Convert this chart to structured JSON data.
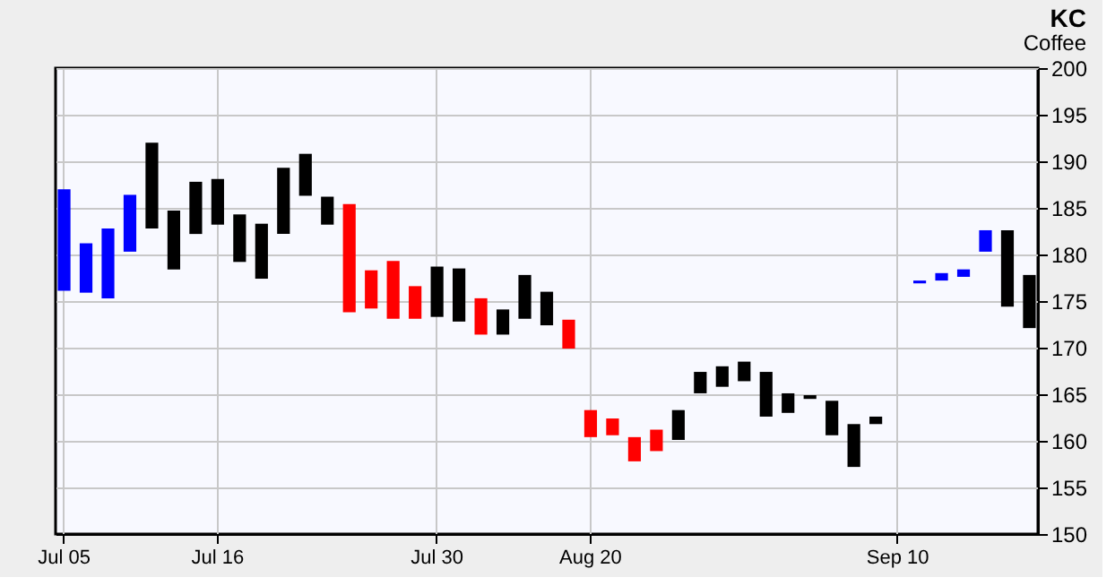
{
  "chart_data": {
    "type": "bar",
    "title": "KC",
    "subtitle": "Coffee",
    "categories": [
      "Jul 05",
      null,
      null,
      null,
      null,
      null,
      null,
      "Jul 16",
      null,
      null,
      null,
      null,
      null,
      null,
      null,
      null,
      null,
      "Jul 30",
      null,
      null,
      null,
      null,
      null,
      null,
      "Aug 20",
      null,
      null,
      null,
      null,
      null,
      null,
      null,
      null,
      null,
      null,
      null,
      null,
      null,
      "Sep 10",
      null,
      null,
      null,
      null,
      null,
      null
    ],
    "base": [
      176.1,
      175.9,
      175.3,
      180.3,
      182.8,
      178.4,
      182.2,
      183.2,
      179.2,
      177.4,
      182.2,
      186.3,
      183.2,
      173.8,
      174.2,
      173.1,
      173.1,
      173.3,
      172.8,
      171.4,
      171.4,
      173.1,
      172.4,
      169.9,
      160.4,
      160.6,
      157.8,
      158.9,
      160.1,
      165.1,
      165.8,
      166.4,
      162.6,
      163.0,
      164.5,
      160.6,
      157.2,
      161.8,
      null,
      176.9,
      177.2,
      177.6,
      180.3,
      174.4,
      172.1
    ],
    "values": [
      10.9,
      5.3,
      7.5,
      6.1,
      9.2,
      6.3,
      5.6,
      4.9,
      5.1,
      5.9,
      7.1,
      4.5,
      3.0,
      11.6,
      4.1,
      6.2,
      3.5,
      5.4,
      5.7,
      3.9,
      2.7,
      4.7,
      3.6,
      3.1,
      2.9,
      1.8,
      2.6,
      2.3,
      3.2,
      2.3,
      2.2,
      2.1,
      4.8,
      2.1,
      0.4,
      3.7,
      4.6,
      0.8,
      null,
      0.3,
      0.8,
      0.8,
      2.3,
      8.2,
      5.7
    ],
    "colors": [
      "#0000ff",
      "#0000ff",
      "#0000ff",
      "#0000ff",
      "#000000",
      "#000000",
      "#000000",
      "#000000",
      "#000000",
      "#000000",
      "#000000",
      "#000000",
      "#000000",
      "#ff0000",
      "#ff0000",
      "#ff0000",
      "#ff0000",
      "#000000",
      "#000000",
      "#ff0000",
      "#000000",
      "#000000",
      "#000000",
      "#ff0000",
      "#ff0000",
      "#ff0000",
      "#ff0000",
      "#ff0000",
      "#000000",
      "#000000",
      "#000000",
      "#000000",
      "#000000",
      "#000000",
      "#000000",
      "#000000",
      "#000000",
      "#000000",
      null,
      "#0000ff",
      "#0000ff",
      "#0000ff",
      "#0000ff",
      "#000000",
      "#000000"
    ],
    "ylim": [
      150,
      200
    ],
    "yticks": [
      150,
      155,
      160,
      165,
      170,
      175,
      180,
      185,
      190,
      195,
      200
    ],
    "grid": true
  }
}
